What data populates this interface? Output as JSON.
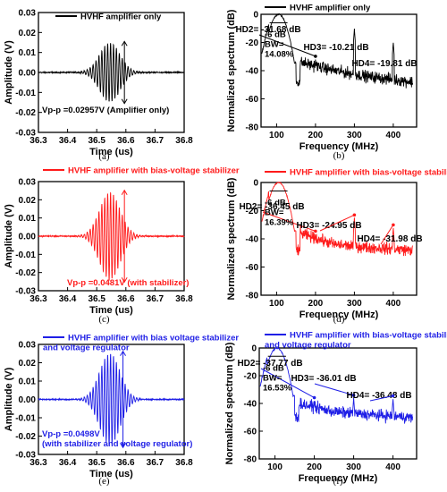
{
  "colors": {
    "black": "#000000",
    "red": "#ff1a1a",
    "blue": "#1f1fe6"
  },
  "chart_data": [
    {
      "id": "a",
      "type": "line",
      "color": "#000000",
      "legend": "HVHF amplifier only",
      "xlabel": "Time (us)",
      "ylabel": "Amplitude (V)",
      "xlim": [
        36.3,
        36.8
      ],
      "ylim": [
        -0.03,
        0.03
      ],
      "xticks": [
        "36.3",
        "36.4",
        "36.5",
        "36.6",
        "36.7",
        "36.8"
      ],
      "yticks": [
        "0.03",
        "0.02",
        "0.01",
        "0.00",
        "-0.01",
        "-0.02",
        "-0.03"
      ],
      "annotation": "Vp-p =0.02957V (Amplifier only)",
      "caption": "(a)",
      "signal": {
        "center": 36.545,
        "span": 0.12,
        "peak": 0.0148,
        "freq_mhz": 100,
        "noise": 0.0004
      },
      "vpp_marker_x": 36.595
    },
    {
      "id": "b",
      "type": "line",
      "color": "#000000",
      "legend": "HVHF amplifier only",
      "xlabel": "Frequency (MHz)",
      "ylabel": "Normalized spectrum (dB)",
      "xlim": [
        60,
        460
      ],
      "ylim": [
        -80,
        0
      ],
      "xticks": [
        "100",
        "200",
        "300",
        "400"
      ],
      "yticks": [
        "0",
        "-20",
        "-40",
        "-60",
        "-80"
      ],
      "annotations": [
        "HD2= -31.68 dB",
        "HD3= -10.21 dB",
        "HD4= -19.81 dB",
        "-6 dB",
        "BW=",
        "14.08%"
      ],
      "caption": "(b)",
      "harmonics": [
        {
          "f": 200,
          "db": -31.68
        },
        {
          "f": 300,
          "db": -10.21
        },
        {
          "f": 400,
          "db": -19.81
        }
      ],
      "noise_floor": [
        [
          160,
          -34
        ],
        [
          250,
          -40
        ],
        [
          330,
          -44
        ],
        [
          450,
          -48
        ]
      ]
    },
    {
      "id": "c",
      "type": "line",
      "color": "#ff1a1a",
      "legend": "HVHF amplifier with bias-voltage stabilizer",
      "xlabel": "Time (us)",
      "ylabel": "Amplitude (V)",
      "xlim": [
        36.3,
        36.8
      ],
      "ylim": [
        -0.03,
        0.03
      ],
      "xticks": [
        "36.3",
        "36.4",
        "36.5",
        "36.6",
        "36.7",
        "36.8"
      ],
      "yticks": [
        "0.03",
        "0.02",
        "0.01",
        "0.00",
        "-0.01",
        "-0.02",
        "-0.03"
      ],
      "annotation": "Vp-p =0.0481V (with stabilizer)",
      "caption": "(c)",
      "signal": {
        "center": 36.545,
        "span": 0.12,
        "peak": 0.024,
        "freq_mhz": 100,
        "noise": 0.0004
      },
      "vpp_marker_x": 36.595
    },
    {
      "id": "d",
      "type": "line",
      "color": "#ff1a1a",
      "legend": "HVHF amplifier with bias-voltage stabilizer",
      "xlabel": "Frequency (MHz)",
      "ylabel": "Normalized spectrum (dB)",
      "xlim": [
        60,
        460
      ],
      "ylim": [
        -80,
        0
      ],
      "xticks": [
        "100",
        "200",
        "300",
        "400"
      ],
      "yticks": [
        "0",
        "-20",
        "-40",
        "-60",
        "-80"
      ],
      "annotations": [
        "HD2= -36.45 dB",
        "HD3= -24.95 dB",
        "HD4= -31.98 dB",
        "-6 dB",
        "BW=",
        "16.39%"
      ],
      "caption": "(d)",
      "harmonics": [
        {
          "f": 200,
          "db": -36.45
        },
        {
          "f": 300,
          "db": -24.95
        },
        {
          "f": 400,
          "db": -31.98
        }
      ],
      "noise_floor": [
        [
          160,
          -36
        ],
        [
          250,
          -44
        ],
        [
          330,
          -46
        ],
        [
          450,
          -48
        ]
      ]
    },
    {
      "id": "e",
      "type": "line",
      "color": "#1f1fe6",
      "legend": "HVHF amplifier with bias voltage stabilizer\nand voltage regulator",
      "xlabel": "Time (us)",
      "ylabel": "Amplitude (V)",
      "xlim": [
        36.3,
        36.8
      ],
      "ylim": [
        -0.03,
        0.03
      ],
      "xticks": [
        "36.3",
        "36.4",
        "36.5",
        "36.6",
        "36.7",
        "36.8"
      ],
      "yticks": [
        "0.03",
        "0.02",
        "0.01",
        "0.00",
        "-0.01",
        "-0.02",
        "-0.03"
      ],
      "annotation": "Vp-p =0.0498V\n(with stabilizer and voltage regulator)",
      "caption": "(e)",
      "signal": {
        "center": 36.545,
        "span": 0.12,
        "peak": 0.025,
        "freq_mhz": 100,
        "noise": 0.0004
      },
      "vpp_marker_x": 36.59
    },
    {
      "id": "f",
      "type": "line",
      "color": "#1f1fe6",
      "legend": "HVHF amplifier with bias-voltage stabilizer\nand voltage regulator",
      "xlabel": "Frequency (MHz)",
      "ylabel": "Normalized spectrum (dB)",
      "xlim": [
        60,
        460
      ],
      "ylim": [
        -80,
        0
      ],
      "xticks": [
        "100",
        "200",
        "300",
        "400"
      ],
      "yticks": [
        "0",
        "-20",
        "-40",
        "-60",
        "-80"
      ],
      "annotations": [
        "HD2= -37.77 dB",
        "HD3= -36.01 dB",
        "HD4= -36.48 dB",
        "-6 dB",
        "BW=",
        "16.53%"
      ],
      "caption": "(f)",
      "harmonics": [
        {
          "f": 200,
          "db": -37.77
        },
        {
          "f": 300,
          "db": -36.01
        },
        {
          "f": 400,
          "db": -36.48
        }
      ],
      "noise_floor": [
        [
          160,
          -40
        ],
        [
          250,
          -46
        ],
        [
          330,
          -48
        ],
        [
          450,
          -50
        ]
      ]
    }
  ]
}
